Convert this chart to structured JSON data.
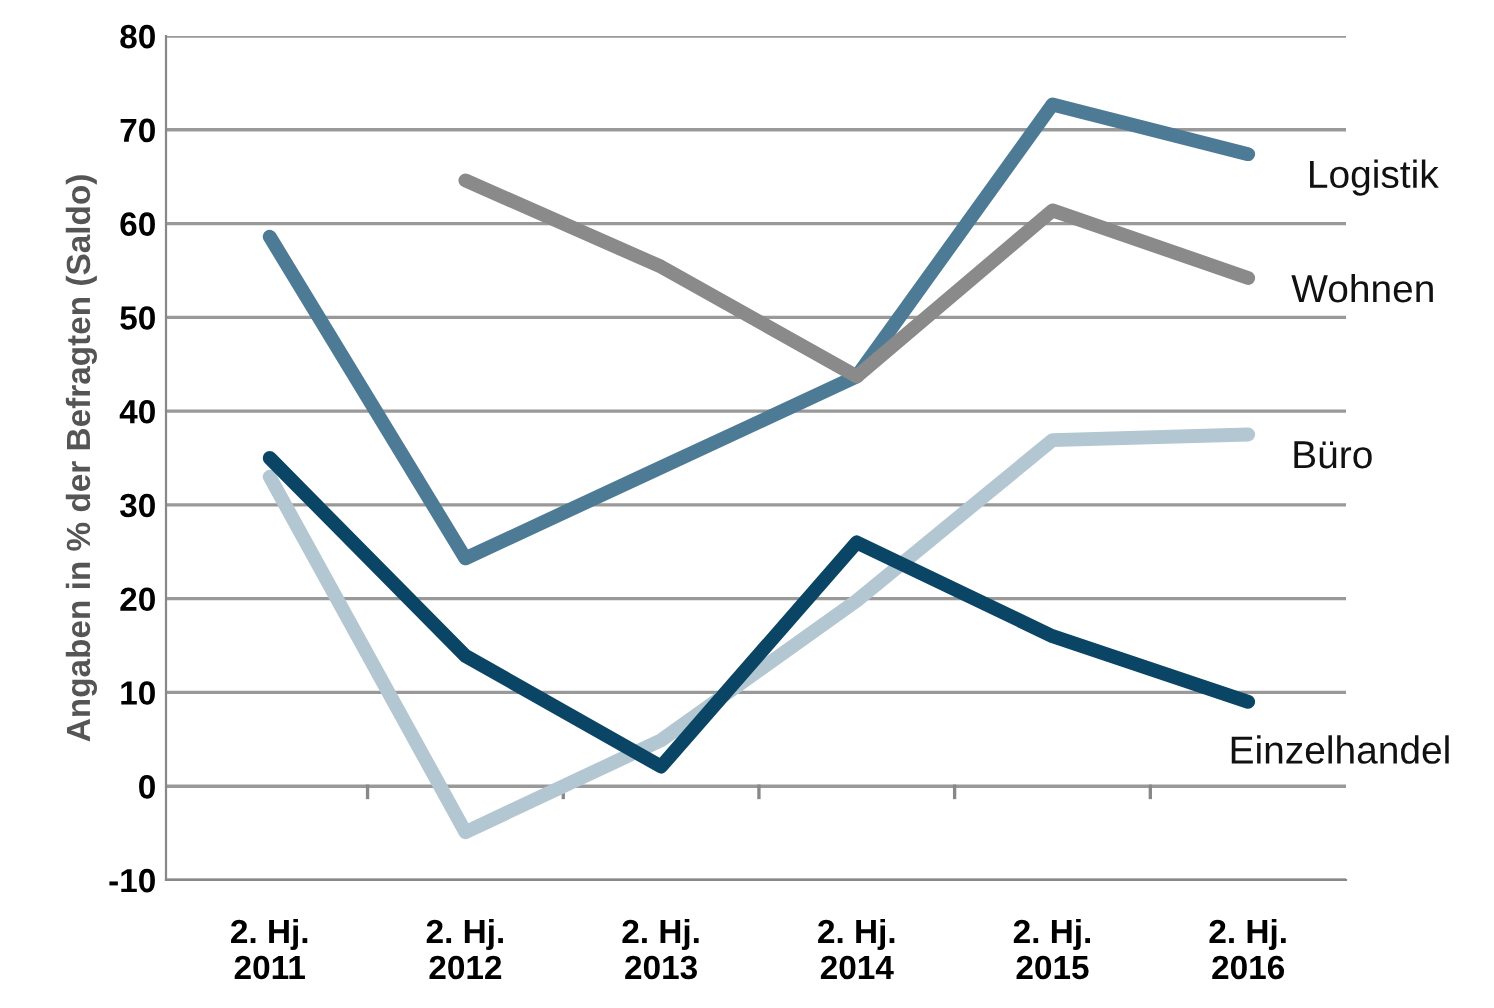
{
  "chart_data": {
    "type": "line",
    "ylabel": "Angaben in % der Befragten (Saldo)",
    "categories": [
      "2. Hj.\n2011",
      "2. Hj.\n2012",
      "2. Hj.\n2013",
      "2. Hj.\n2014",
      "2. Hj.\n2015",
      "2. Hj.\n2016"
    ],
    "series": [
      {
        "name": "Logistik",
        "color": "#4d7b96",
        "values": [
          58.6,
          24.3,
          34,
          43.7,
          72.7,
          67.4
        ]
      },
      {
        "name": "Wohnen",
        "color": "#8a8a8a",
        "values": [
          null,
          64.6,
          55.4,
          43.7,
          61.4,
          54.2
        ]
      },
      {
        "name": "Büro",
        "color": "#b3c7d2",
        "values": [
          33,
          -4.9,
          4.9,
          19.8,
          36.9,
          37.5
        ]
      },
      {
        "name": "Einzelhandel",
        "color": "#0b4565",
        "values": [
          35,
          13.9,
          2.1,
          26,
          16,
          9
        ]
      }
    ],
    "ylim": [
      -10,
      80
    ],
    "yticks": [
      -10,
      0,
      10,
      20,
      30,
      40,
      50,
      60,
      70,
      80
    ],
    "grid": "y",
    "legend": false,
    "marker": "none",
    "line_style": "solid"
  }
}
